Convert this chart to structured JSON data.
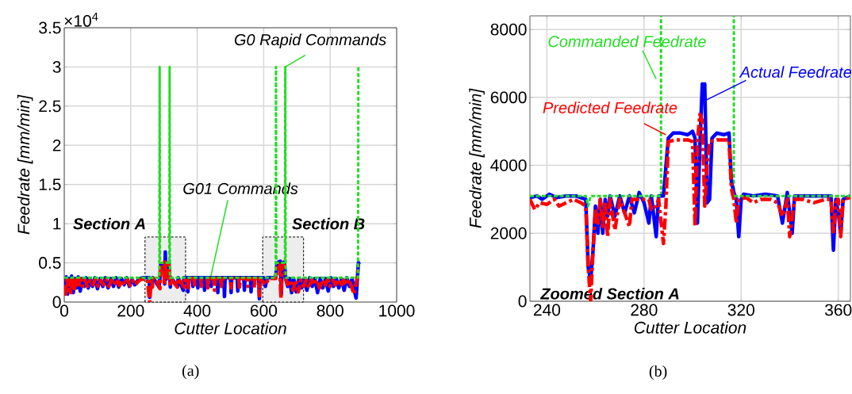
{
  "chart_data": [
    {
      "type": "line",
      "xlabel": "Cutter Location",
      "ylabel": "Feedrate [mm/min]",
      "xlim": [
        0,
        1000
      ],
      "ylim": [
        0,
        3.5
      ],
      "xticks": [
        0,
        200,
        400,
        600,
        800,
        1000
      ],
      "yticks": [
        0,
        0.5,
        1,
        1.5,
        2,
        2.5,
        3,
        3.5
      ],
      "grid": true,
      "series": [
        {
          "color": "#0000ff",
          "line_style": "solid",
          "x": [
            0,
            3,
            6,
            10,
            14,
            18,
            22,
            27,
            32,
            37,
            42,
            48,
            54,
            60,
            66,
            72,
            78,
            85,
            92,
            100,
            108,
            116,
            124,
            132,
            140,
            148,
            156,
            164,
            172,
            180,
            188,
            196,
            204,
            212,
            220,
            228,
            236,
            248,
            256,
            257,
            260,
            263,
            266,
            275,
            285,
            288,
            290,
            300,
            302,
            304,
            306,
            308,
            315,
            319,
            321,
            341,
            343,
            358,
            360,
            370,
            372,
            374,
            385,
            387,
            389,
            400,
            402,
            404,
            420,
            422,
            424,
            440,
            442,
            444,
            460,
            462,
            464,
            480,
            482,
            484,
            500,
            502,
            504,
            520,
            522,
            524,
            540,
            542,
            544,
            560,
            562,
            564,
            585,
            587,
            589,
            600,
            605,
            610,
            630,
            636,
            640,
            650,
            653,
            656,
            662,
            666,
            672,
            678,
            684,
            690,
            698,
            706,
            714,
            722,
            730,
            738,
            746,
            754,
            762,
            770,
            778,
            786,
            794,
            802,
            810,
            818,
            826,
            834,
            842,
            850,
            858,
            866,
            874,
            878,
            882,
            885,
            890
          ],
          "values": [
            0.25,
            0.12,
            0.32,
            0.1,
            0.3,
            0.15,
            0.33,
            0.12,
            0.3,
            0.18,
            0.32,
            0.14,
            0.3,
            0.2,
            0.31,
            0.18,
            0.3,
            0.2,
            0.31,
            0.17,
            0.3,
            0.2,
            0.31,
            0.18,
            0.3,
            0.2,
            0.31,
            0.19,
            0.3,
            0.22,
            0.31,
            0.2,
            0.29,
            0.22,
            0.27,
            0.3,
            0.31,
            0.31,
            0.31,
            0.06,
            0.28,
            0.2,
            0.31,
            0.26,
            0.19,
            0.31,
            0.48,
            0.5,
            0.23,
            0.64,
            0.29,
            0.48,
            0.5,
            0.19,
            0.31,
            0.2,
            0.31,
            0.15,
            0.31,
            0.31,
            0.13,
            0.31,
            0.31,
            0.2,
            0.31,
            0.31,
            0.18,
            0.31,
            0.31,
            0.15,
            0.31,
            0.31,
            0.2,
            0.31,
            0.31,
            0.12,
            0.31,
            0.31,
            0.07,
            0.31,
            0.31,
            0.12,
            0.31,
            0.31,
            0.14,
            0.31,
            0.31,
            0.15,
            0.31,
            0.31,
            0.13,
            0.31,
            0.31,
            0.04,
            0.31,
            0.31,
            0.2,
            0.31,
            0.31,
            0.31,
            0.5,
            0.52,
            0.1,
            0.5,
            0.51,
            0.31,
            0.2,
            0.3,
            0.12,
            0.3,
            0.13,
            0.3,
            0.18,
            0.3,
            0.15,
            0.31,
            0.2,
            0.3,
            0.12,
            0.3,
            0.18,
            0.3,
            0.14,
            0.31,
            0.2,
            0.3,
            0.18,
            0.3,
            0.15,
            0.31,
            0.2,
            0.3,
            0.12,
            0.05,
            0.3,
            0.5,
            0.51
          ]
        },
        {
          "color": "#ff0000",
          "line_style": "dashed",
          "x": [
            0,
            4,
            8,
            12,
            16,
            20,
            25,
            30,
            36,
            42,
            48,
            55,
            62,
            70,
            78,
            86,
            94,
            102,
            110,
            118,
            126,
            134,
            142,
            150,
            158,
            166,
            174,
            182,
            190,
            198,
            206,
            214,
            222,
            230,
            240,
            250,
            257,
            259,
            262,
            265,
            268,
            275,
            288,
            290,
            300,
            301,
            303,
            305,
            307,
            315,
            318,
            320,
            340,
            342,
            361,
            363,
            372,
            374,
            376,
            390,
            392,
            394,
            410,
            412,
            414,
            430,
            432,
            434,
            450,
            452,
            454,
            470,
            472,
            474,
            500,
            502,
            504,
            525,
            527,
            529,
            550,
            552,
            554,
            570,
            572,
            574,
            585,
            587,
            589,
            605,
            615,
            636,
            640,
            648,
            652,
            655,
            662,
            666,
            672,
            680,
            688,
            696,
            704,
            712,
            720,
            728,
            736,
            744,
            752,
            760,
            768,
            776,
            784,
            792,
            800,
            808,
            816,
            824,
            832,
            840,
            848,
            856,
            864,
            872,
            880,
            885
          ],
          "values": [
            0.2,
            0.1,
            0.3,
            0.15,
            0.28,
            0.12,
            0.3,
            0.17,
            0.29,
            0.18,
            0.3,
            0.2,
            0.29,
            0.2,
            0.28,
            0.22,
            0.3,
            0.2,
            0.28,
            0.22,
            0.29,
            0.2,
            0.28,
            0.22,
            0.29,
            0.21,
            0.28,
            0.22,
            0.29,
            0.21,
            0.27,
            0.22,
            0.26,
            0.29,
            0.29,
            0.29,
            0.0,
            0.15,
            0.3,
            0.19,
            0.3,
            0.3,
            0.17,
            0.47,
            0.47,
            0.22,
            0.55,
            0.28,
            0.47,
            0.47,
            0.23,
            0.3,
            0.19,
            0.3,
            0.19,
            0.3,
            0.3,
            0.18,
            0.3,
            0.3,
            0.22,
            0.3,
            0.3,
            0.2,
            0.3,
            0.3,
            0.18,
            0.3,
            0.3,
            0.15,
            0.3,
            0.3,
            0.2,
            0.3,
            0.3,
            0.18,
            0.3,
            0.3,
            0.17,
            0.3,
            0.3,
            0.2,
            0.3,
            0.3,
            0.18,
            0.3,
            0.3,
            0.08,
            0.3,
            0.22,
            0.3,
            0.3,
            0.47,
            0.48,
            0.05,
            0.47,
            0.47,
            0.3,
            0.22,
            0.28,
            0.15,
            0.28,
            0.13,
            0.28,
            0.2,
            0.28,
            0.18,
            0.29,
            0.22,
            0.28,
            0.18,
            0.28,
            0.2,
            0.29,
            0.2,
            0.28,
            0.22,
            0.29,
            0.2,
            0.28,
            0.22,
            0.29,
            0.2,
            0.1,
            0.28,
            0.47
          ]
        },
        {
          "color": "#22dd22",
          "line_style": "dotted",
          "x": [
            0,
            256,
            257,
            258,
            286,
            287,
            288,
            316,
            317,
            318,
            636,
            637,
            638,
            664,
            665,
            666,
            884,
            885
          ],
          "values": [
            0.31,
            0.31,
            0.28,
            0.31,
            0.31,
            3.0,
            0.5,
            0.5,
            3.0,
            0.31,
            0.31,
            3.0,
            0.5,
            0.5,
            3.0,
            0.31,
            0.31,
            3.0
          ]
        }
      ],
      "bands": [
        {
          "axis": "x",
          "from": 243,
          "to": 365,
          "label": "Section A",
          "color": "#000000"
        },
        {
          "axis": "x",
          "from": 597,
          "to": 720,
          "label": "Section B",
          "color": "#000000"
        }
      ],
      "annotations": [
        "×10$^{4}$",
        {
          "text": "G0 Rapid Commands",
          "x": 665,
          "y": 3.0
        },
        {
          "text": "G01 Commands",
          "x": 440,
          "y": 0.31
        },
        "(a)"
      ]
    },
    {
      "type": "line",
      "xlabel": "Cutter Location",
      "ylabel": "Feedrate [mm/min]",
      "xlim": [
        233,
        365
      ],
      "ylim": [
        0,
        8400
      ],
      "xticks": [
        240,
        280,
        320,
        360
      ],
      "yticks": [
        0,
        2000,
        4000,
        6000,
        8000
      ],
      "grid": true,
      "series": [
        {
          "name": "Actual Feedrate",
          "color": "#0000ff",
          "line_style": "solid",
          "x": [
            233,
            236,
            238,
            241,
            244,
            248,
            252,
            254,
            256,
            257,
            258,
            259,
            260,
            261,
            262,
            263,
            264,
            265,
            266,
            268,
            270,
            272,
            274,
            276,
            278,
            280,
            282,
            283,
            285,
            286,
            288,
            290,
            292,
            295,
            298,
            300,
            301,
            302,
            303,
            304,
            305,
            306,
            307,
            308,
            310,
            313,
            315,
            316,
            317,
            318,
            319,
            320,
            321,
            325,
            330,
            335,
            337,
            339,
            341,
            342,
            345,
            350,
            355,
            357,
            358,
            359,
            360,
            361,
            362,
            365
          ],
          "values": [
            3050,
            3100,
            3000,
            3150,
            3050,
            3100,
            3100,
            3050,
            3000,
            1000,
            600,
            1500,
            2800,
            2000,
            3000,
            2000,
            3000,
            2500,
            3100,
            2500,
            3100,
            2600,
            3100,
            2600,
            3200,
            2900,
            2300,
            3100,
            1900,
            3100,
            3100,
            4800,
            4950,
            4950,
            4900,
            5000,
            4800,
            2300,
            4600,
            6400,
            6400,
            2900,
            3000,
            4800,
            4950,
            4900,
            4950,
            3500,
            3200,
            3000,
            1900,
            3000,
            3150,
            3100,
            3150,
            3100,
            2300,
            3200,
            2000,
            3100,
            3100,
            3100,
            3100,
            3100,
            1500,
            3000,
            2600,
            2000,
            3000,
            3100
          ]
        },
        {
          "name": "Predicted Feedrate",
          "color": "#ff0000",
          "line_style": "dashed",
          "x": [
            233,
            235,
            237,
            240,
            243,
            245,
            248,
            251,
            254,
            256,
            257,
            258,
            259,
            260,
            261,
            262,
            263,
            264,
            265,
            266,
            268,
            270,
            272,
            274,
            275,
            280,
            282,
            283,
            285,
            286,
            288,
            289,
            290,
            293,
            298,
            300,
            301,
            302,
            303,
            304,
            305,
            306,
            307,
            310,
            315,
            316,
            317,
            318,
            319,
            322,
            325,
            328,
            332,
            335,
            337,
            339,
            340,
            342,
            345,
            350,
            355,
            357,
            358,
            359,
            360,
            361,
            362,
            365
          ],
          "values": [
            3000,
            2700,
            2900,
            2850,
            3000,
            2800,
            2900,
            3000,
            2900,
            2800,
            1000,
            0,
            1500,
            2700,
            2300,
            3000,
            2200,
            2900,
            1900,
            3000,
            2100,
            3000,
            2600,
            2200,
            3000,
            3000,
            3000,
            2700,
            2800,
            3000,
            1700,
            2800,
            4700,
            4750,
            4750,
            4700,
            2200,
            4700,
            5500,
            5300,
            2800,
            4000,
            4700,
            4750,
            4750,
            3300,
            3000,
            2300,
            3000,
            3050,
            2900,
            3000,
            3000,
            2900,
            2500,
            3000,
            1900,
            3000,
            3000,
            2900,
            3000,
            3000,
            2000,
            2900,
            3000,
            1900,
            3000,
            3050
          ]
        },
        {
          "name": "Commanded Feedrate",
          "color": "#22dd22",
          "line_style": "dotted",
          "x": [
            233,
            256,
            257,
            258,
            287,
            288,
            317,
            365
          ],
          "values": [
            3100,
            3100,
            2800,
            3100,
            3100,
            null,
            3100,
            3100
          ]
        }
      ],
      "ref_lines": [
        {
          "axis": "x",
          "value": 287,
          "color": "#22dd22",
          "line_style": "dotted"
        },
        {
          "axis": "x",
          "value": 317,
          "color": "#22dd22",
          "line_style": "dotted"
        }
      ],
      "annotations": [
        "Zoomed Section A",
        "(b)"
      ]
    }
  ]
}
